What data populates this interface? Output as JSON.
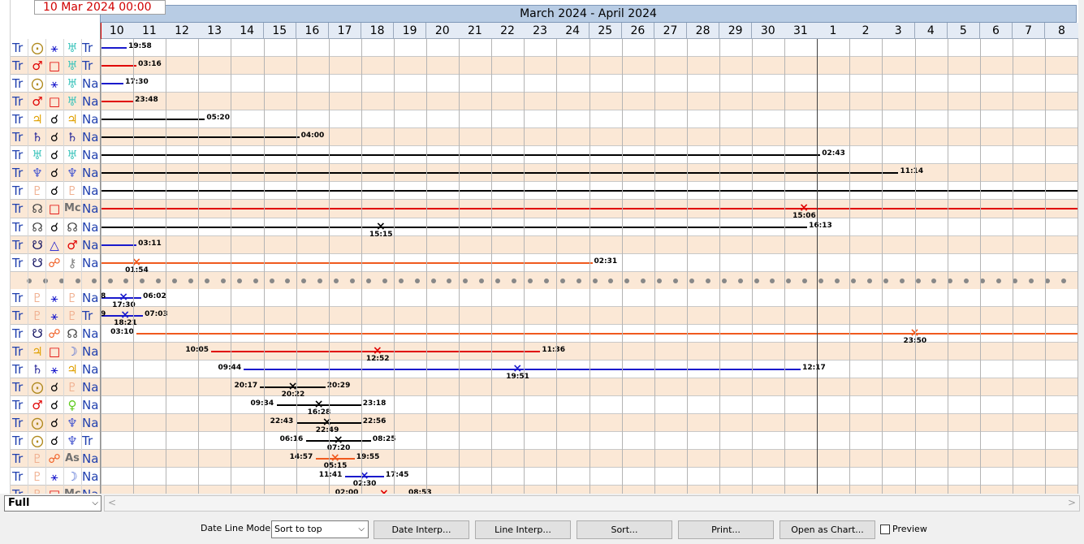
{
  "date_field": "10 Mar 2024 00:00",
  "period_title": "March 2024 - April 2024",
  "days": [
    "10",
    "11",
    "12",
    "13",
    "14",
    "15",
    "16",
    "17",
    "18",
    "19",
    "20",
    "21",
    "22",
    "23",
    "24",
    "25",
    "26",
    "27",
    "28",
    "29",
    "30",
    "31",
    "1",
    "2",
    "3",
    "4",
    "5",
    "6",
    "7",
    "8"
  ],
  "colors": {
    "blue": "#1a1acc",
    "red": "#e00000",
    "orange": "#f05a1e",
    "black": "#000000",
    "row_alt": "#fbe8d6",
    "header": "#b8cce4"
  },
  "symbols": {
    "sun": {
      "char": "⨀",
      "color": "#b08a1e"
    },
    "mars": {
      "char": "♂",
      "color": "#e00000"
    },
    "jupiter": {
      "char": "♃",
      "color": "#e0a000"
    },
    "saturn": {
      "char": "♄",
      "color": "#2a2a9a"
    },
    "uranus": {
      "char": "♅",
      "color": "#3cc4bc"
    },
    "neptune": {
      "char": "♆",
      "color": "#4a5ad0"
    },
    "pluto": {
      "char": "♇",
      "color": "#f0b090"
    },
    "node": {
      "char": "☊",
      "color": "#404040"
    },
    "snode": {
      "char": "☋",
      "color": "#101060"
    },
    "venus": {
      "char": "♀",
      "color": "#60cc20"
    },
    "moon": {
      "char": "☽",
      "color": "#4060d0"
    },
    "chiron": {
      "char": "⚷",
      "color": "#808080"
    },
    "mc": {
      "char": "Mc",
      "color": "#707070"
    },
    "as": {
      "char": "As",
      "color": "#707070"
    },
    "conj": {
      "char": "☌",
      "color": "#000000"
    },
    "sext": {
      "char": "⚹",
      "color": "#1a1acc"
    },
    "square": {
      "char": "□",
      "color": "#e00000"
    },
    "trine": {
      "char": "△",
      "color": "#1a1acc"
    },
    "opp": {
      "char": "☍",
      "color": "#f05a1e"
    }
  },
  "rows": [
    {
      "tr": "Tr",
      "p1": "sun",
      "asp": "sext",
      "p2": "uranus",
      "st": "Tr",
      "line": {
        "color": "blue",
        "from": 0,
        "to": 0.8
      },
      "labels": [
        {
          "text": "19:58",
          "at": 0.8,
          "pos": "end"
        }
      ]
    },
    {
      "tr": "Tr",
      "p1": "mars",
      "asp": "square",
      "p2": "uranus",
      "st": "Tr",
      "line": {
        "color": "red",
        "from": 0,
        "to": 1.1
      },
      "labels": [
        {
          "text": "03:16",
          "at": 1.1,
          "pos": "end"
        }
      ]
    },
    {
      "tr": "Tr",
      "p1": "sun",
      "asp": "sext",
      "p2": "uranus",
      "st": "Na",
      "line": {
        "color": "blue",
        "from": 0,
        "to": 0.7
      },
      "labels": [
        {
          "text": "17:30",
          "at": 0.7,
          "pos": "end"
        }
      ]
    },
    {
      "tr": "Tr",
      "p1": "mars",
      "asp": "square",
      "p2": "uranus",
      "st": "Na",
      "line": {
        "color": "red",
        "from": 0,
        "to": 1.0
      },
      "labels": [
        {
          "text": "23:48",
          "at": 1.0,
          "pos": "end"
        }
      ]
    },
    {
      "tr": "Tr",
      "p1": "jupiter",
      "asp": "conj",
      "p2": "jupiter",
      "st": "Na",
      "line": {
        "color": "black",
        "from": 0,
        "to": 3.2
      },
      "labels": [
        {
          "text": "05:20",
          "at": 3.2,
          "pos": "end"
        }
      ]
    },
    {
      "tr": "Tr",
      "p1": "saturn",
      "asp": "conj",
      "p2": "saturn",
      "st": "Na",
      "line": {
        "color": "black",
        "from": 0,
        "to": 6.1
      },
      "labels": [
        {
          "text": "04:00",
          "at": 6.1,
          "pos": "end"
        }
      ]
    },
    {
      "tr": "Tr",
      "p1": "uranus",
      "asp": "conj",
      "p2": "uranus",
      "st": "Na",
      "line": {
        "color": "black",
        "from": 0,
        "to": 22.1
      },
      "labels": [
        {
          "text": "02:43",
          "at": 22.1,
          "pos": "end"
        }
      ]
    },
    {
      "tr": "Tr",
      "p1": "neptune",
      "asp": "conj",
      "p2": "neptune",
      "st": "Na",
      "line": {
        "color": "black",
        "from": 0,
        "to": 24.5
      },
      "labels": [
        {
          "text": "11:14",
          "at": 24.5,
          "pos": "end"
        }
      ]
    },
    {
      "tr": "Tr",
      "p1": "pluto",
      "asp": "conj",
      "p2": "pluto",
      "st": "Na",
      "line": {
        "color": "black",
        "from": 0,
        "to": 30
      },
      "labels": []
    },
    {
      "tr": "Tr",
      "p1": "node",
      "asp": "square",
      "p2": "mc",
      "st": "Na",
      "line": {
        "color": "red",
        "from": 0,
        "to": 30
      },
      "x": {
        "at": 21.6,
        "color": "red"
      },
      "labels": [
        {
          "text": "15:06",
          "at": 21.6,
          "pos": "below"
        }
      ]
    },
    {
      "tr": "Tr",
      "p1": "node",
      "asp": "conj",
      "p2": "node",
      "st": "Na",
      "line": {
        "color": "black",
        "from": 0,
        "to": 21.7
      },
      "x": {
        "at": 8.6,
        "color": "black"
      },
      "labels": [
        {
          "text": "15:15",
          "at": 8.6,
          "pos": "below"
        },
        {
          "text": "16:13",
          "at": 21.7,
          "pos": "end"
        }
      ]
    },
    {
      "tr": "Tr",
      "p1": "snode",
      "asp": "trine",
      "p2": "mars",
      "st": "Na",
      "line": {
        "color": "blue",
        "from": 0,
        "to": 1.1
      },
      "labels": [
        {
          "text": "03:11",
          "at": 1.1,
          "pos": "end"
        }
      ]
    },
    {
      "tr": "Tr",
      "p1": "snode",
      "asp": "opp",
      "p2": "chiron",
      "st": "Na",
      "line": {
        "color": "orange",
        "from": 0,
        "to": 15.1
      },
      "x": {
        "at": 1.1,
        "color": "orange"
      },
      "labels": [
        {
          "text": "01:54",
          "at": 1.1,
          "pos": "below"
        },
        {
          "text": "02:31",
          "at": 15.1,
          "pos": "end"
        }
      ]
    },
    {
      "sep": true
    },
    {
      "tr": "Tr",
      "p1": "pluto",
      "asp": "sext",
      "p2": "pluto",
      "st": "Na",
      "line": {
        "color": "blue",
        "from": 0,
        "to": 1.25
      },
      "x": {
        "at": 0.7,
        "color": "blue"
      },
      "labels": [
        {
          "text": "8",
          "at": 0,
          "pos": "start"
        },
        {
          "text": "17:30",
          "at": 0.7,
          "pos": "below"
        },
        {
          "text": "06:02",
          "at": 1.25,
          "pos": "end"
        }
      ]
    },
    {
      "tr": "Tr",
      "p1": "pluto",
      "asp": "sext",
      "p2": "pluto",
      "st": "Tr",
      "line": {
        "color": "blue",
        "from": 0,
        "to": 1.3
      },
      "x": {
        "at": 0.75,
        "color": "blue"
      },
      "labels": [
        {
          "text": "9",
          "at": 0,
          "pos": "start"
        },
        {
          "text": "18:21",
          "at": 0.75,
          "pos": "below"
        },
        {
          "text": "07:03",
          "at": 1.3,
          "pos": "end"
        }
      ]
    },
    {
      "tr": "Tr",
      "p1": "snode",
      "asp": "opp",
      "p2": "node",
      "st": "Na",
      "line": {
        "color": "orange",
        "from": 1.1,
        "to": 30
      },
      "x": {
        "at": 25.0,
        "color": "orange"
      },
      "labels": [
        {
          "text": "03:10",
          "at": 1.1,
          "pos": "start"
        },
        {
          "text": "23:50",
          "at": 25.0,
          "pos": "below"
        }
      ]
    },
    {
      "tr": "Tr",
      "p1": "jupiter",
      "asp": "square",
      "p2": "moon",
      "st": "Na",
      "line": {
        "color": "red",
        "from": 3.4,
        "to": 13.5
      },
      "x": {
        "at": 8.5,
        "color": "red"
      },
      "labels": [
        {
          "text": "10:05",
          "at": 3.4,
          "pos": "start"
        },
        {
          "text": "12:52",
          "at": 8.5,
          "pos": "below"
        },
        {
          "text": "11:36",
          "at": 13.5,
          "pos": "end"
        }
      ]
    },
    {
      "tr": "Tr",
      "p1": "saturn",
      "asp": "sext",
      "p2": "jupiter",
      "st": "Na",
      "line": {
        "color": "blue",
        "from": 4.4,
        "to": 21.5
      },
      "x": {
        "at": 12.8,
        "color": "blue"
      },
      "labels": [
        {
          "text": "09:44",
          "at": 4.4,
          "pos": "start"
        },
        {
          "text": "19:51",
          "at": 12.8,
          "pos": "below"
        },
        {
          "text": "12:17",
          "at": 21.5,
          "pos": "end"
        }
      ]
    },
    {
      "tr": "Tr",
      "p1": "sun",
      "asp": "conj",
      "p2": "pluto",
      "st": "Na",
      "line": {
        "color": "black",
        "from": 4.9,
        "to": 6.9
      },
      "x": {
        "at": 5.9,
        "color": "black"
      },
      "labels": [
        {
          "text": "20:17",
          "at": 4.9,
          "pos": "start"
        },
        {
          "text": "20:22",
          "at": 5.9,
          "pos": "below"
        },
        {
          "text": "20:29",
          "at": 6.9,
          "pos": "end"
        }
      ]
    },
    {
      "tr": "Tr",
      "p1": "mars",
      "asp": "conj",
      "p2": "venus",
      "st": "Na",
      "line": {
        "color": "black",
        "from": 5.4,
        "to": 8.0
      },
      "x": {
        "at": 6.7,
        "color": "black"
      },
      "labels": [
        {
          "text": "09:34",
          "at": 5.4,
          "pos": "start"
        },
        {
          "text": "16:28",
          "at": 6.7,
          "pos": "below"
        },
        {
          "text": "23:18",
          "at": 8.0,
          "pos": "end"
        }
      ]
    },
    {
      "tr": "Tr",
      "p1": "sun",
      "asp": "conj",
      "p2": "neptune",
      "st": "Na",
      "line": {
        "color": "black",
        "from": 6.0,
        "to": 8.0
      },
      "x": {
        "at": 6.95,
        "color": "black"
      },
      "labels": [
        {
          "text": "22:43",
          "at": 6.0,
          "pos": "start"
        },
        {
          "text": "22:49",
          "at": 6.95,
          "pos": "below"
        },
        {
          "text": "22:56",
          "at": 8.0,
          "pos": "end"
        }
      ]
    },
    {
      "tr": "Tr",
      "p1": "sun",
      "asp": "conj",
      "p2": "neptune",
      "st": "Tr",
      "line": {
        "color": "black",
        "from": 6.3,
        "to": 8.3
      },
      "x": {
        "at": 7.3,
        "color": "black"
      },
      "labels": [
        {
          "text": "06:16",
          "at": 6.3,
          "pos": "start"
        },
        {
          "text": "07:20",
          "at": 7.3,
          "pos": "below"
        },
        {
          "text": "08:25",
          "at": 8.3,
          "pos": "end"
        }
      ]
    },
    {
      "tr": "Tr",
      "p1": "pluto",
      "asp": "opp",
      "p2": "as",
      "st": "Na",
      "line": {
        "color": "orange",
        "from": 6.6,
        "to": 7.8
      },
      "x": {
        "at": 7.2,
        "color": "orange"
      },
      "labels": [
        {
          "text": "14:57",
          "at": 6.6,
          "pos": "start"
        },
        {
          "text": "05:15",
          "at": 7.2,
          "pos": "below"
        },
        {
          "text": "19:55",
          "at": 7.8,
          "pos": "end"
        }
      ]
    },
    {
      "tr": "Tr",
      "p1": "pluto",
      "asp": "sext",
      "p2": "moon",
      "st": "Na",
      "line": {
        "color": "blue",
        "from": 7.5,
        "to": 8.7
      },
      "x": {
        "at": 8.1,
        "color": "blue"
      },
      "labels": [
        {
          "text": "11:41",
          "at": 7.5,
          "pos": "start"
        },
        {
          "text": "02:30",
          "at": 8.1,
          "pos": "below"
        },
        {
          "text": "17:45",
          "at": 8.7,
          "pos": "end"
        }
      ]
    },
    {
      "tr": "Tr",
      "p1": "pluto",
      "asp": "square",
      "p2": "mc",
      "st": "Na",
      "line": {
        "color": "red",
        "from": 8.0,
        "to": 9.4
      },
      "x": {
        "at": 8.7,
        "color": "red"
      },
      "labels": [
        {
          "text": "02:00",
          "at": 8.0,
          "pos": "start"
        },
        {
          "text": "08:53",
          "at": 9.4,
          "pos": "end"
        }
      ]
    }
  ],
  "footer": {
    "zoom_combo": "Full",
    "date_line_mode_label": "Date Line Mode :",
    "date_line_mode_value": "Sort to top",
    "buttons": [
      "Date Interp...",
      "Line Interp...",
      "Sort...",
      "Print...",
      "Open as Chart..."
    ],
    "preview_label": "Preview",
    "scroll_left": "<",
    "scroll_right": ">"
  }
}
